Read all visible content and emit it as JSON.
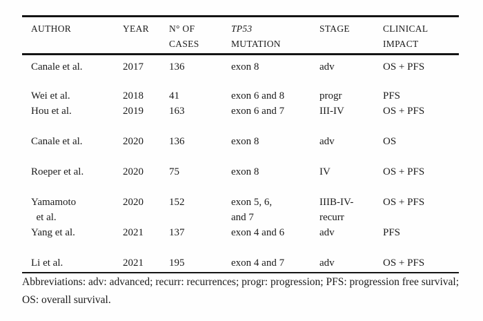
{
  "page": {
    "background": "#fefefe",
    "text_color": "#1a1a1a",
    "rule_color": "#141414"
  },
  "table": {
    "columns": [
      {
        "line1": "AUTHOR",
        "line2": ""
      },
      {
        "line1": "YEAR",
        "line2": ""
      },
      {
        "line1": "N° OF",
        "line2": "CASES"
      },
      {
        "line1": "TP53",
        "line2": "MUTATION",
        "italic_line1": true
      },
      {
        "line1": "STAGE",
        "line2": ""
      },
      {
        "line1": "CLINICAL",
        "line2": "IMPACT"
      }
    ],
    "rows": [
      {
        "author": "Canale et al.",
        "year": "2017",
        "cases": "136",
        "mutation": "exon 8",
        "stage": "adv",
        "impact": "OS + PFS"
      },
      {
        "author": "Wei et al.",
        "year": "2018",
        "cases": "41",
        "mutation": "exon 6 and 8",
        "stage": "progr",
        "impact": "PFS"
      },
      {
        "author": "Hou et al.",
        "year": "2019",
        "cases": "163",
        "mutation": "exon 6 and 7",
        "stage": "III-IV",
        "impact": "OS + PFS"
      },
      {
        "author": "Canale et al.",
        "year": "2020",
        "cases": "136",
        "mutation": "exon 8",
        "stage": "adv",
        "impact": "OS"
      },
      {
        "author": "Roeper et al.",
        "year": "2020",
        "cases": "75",
        "mutation": "exon 8",
        "stage": "IV",
        "impact": "OS + PFS"
      },
      {
        "author": "Yamamoto\n  et al.",
        "year": "2020",
        "cases": "152",
        "mutation": "exon 5, 6,\nand 7",
        "stage": "IIIB-IV-\nrecurr",
        "impact": "OS + PFS"
      },
      {
        "author": "Yang et al.",
        "year": "2021",
        "cases": "137",
        "mutation": "exon 4 and 6",
        "stage": "adv",
        "impact": "PFS"
      },
      {
        "author": "Li et al.",
        "year": "2021",
        "cases": "195",
        "mutation": "exon 4 and 7",
        "stage": "adv",
        "impact": "OS + PFS"
      }
    ]
  },
  "footnote": {
    "text": "Abbreviations: adv: advanced; recurr: recurrences; progr: progression; PFS: progression free survival; OS: overall survival."
  }
}
